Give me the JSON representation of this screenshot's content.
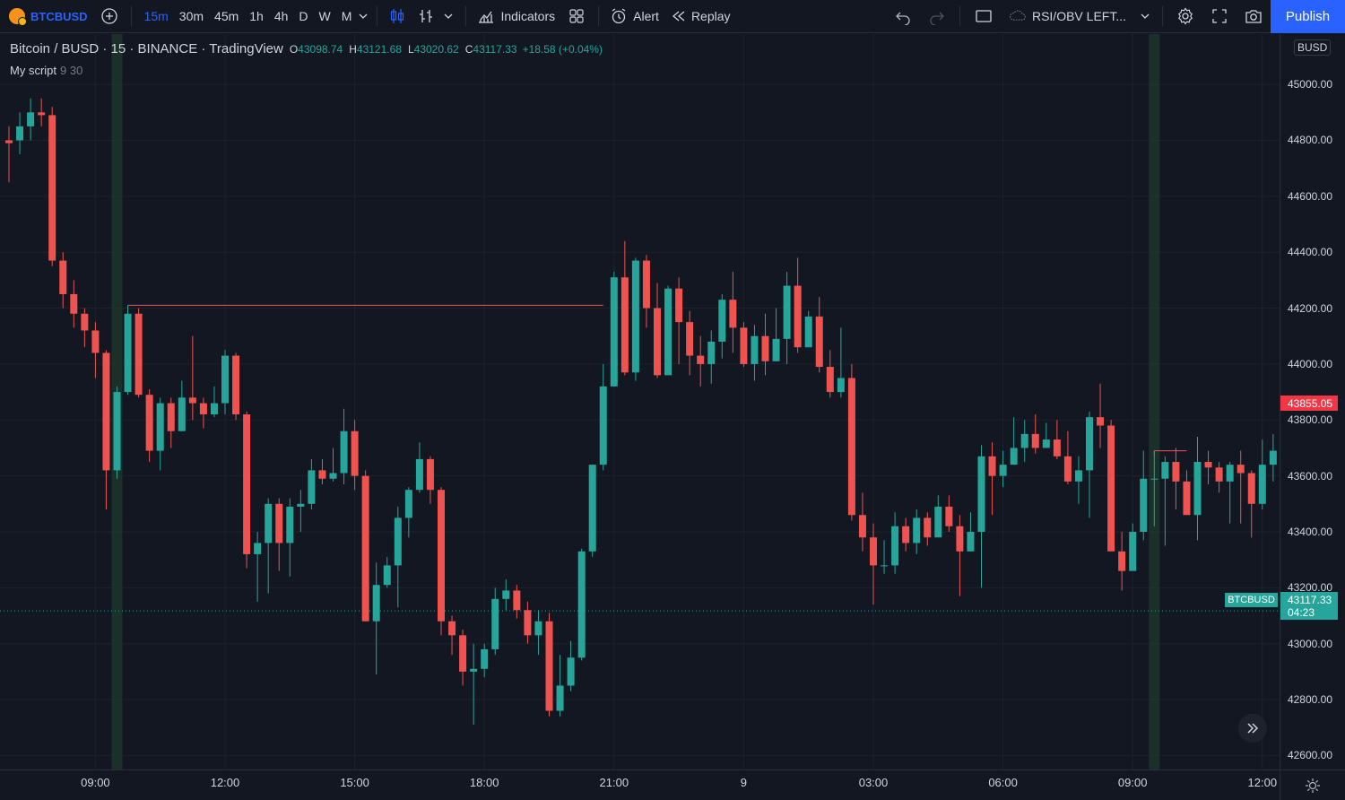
{
  "toolbar": {
    "symbol": "BTCBUSD",
    "intervals": [
      "15m",
      "30m",
      "45m",
      "1h",
      "4h",
      "D",
      "W",
      "M"
    ],
    "active_interval": "15m",
    "indicators_label": "Indicators",
    "alert_label": "Alert",
    "replay_label": "Replay",
    "layout_name": "RSI/OBV LEFT...",
    "publish_label": "Publish"
  },
  "legend": {
    "title": "Bitcoin / BUSD · 15 · BINANCE · TradingView",
    "o_label": "O",
    "o_value": "43098.74",
    "h_label": "H",
    "h_value": "43121.68",
    "l_label": "L",
    "l_value": "43020.62",
    "c_label": "C",
    "c_value": "43117.33",
    "change": "+18.58 (+0.04%)",
    "script_name": "My script",
    "script_params": "9 30"
  },
  "price_scale": {
    "currency": "BUSD",
    "labels": [
      "45000.00",
      "44800.00",
      "44600.00",
      "44400.00",
      "44200.00",
      "44000.00",
      "43800.00",
      "43600.00",
      "43400.00",
      "43200.00",
      "43000.00",
      "42800.00",
      "42600.00"
    ],
    "red_tag": "43855.05",
    "last_price": "43117.33",
    "countdown": "04:23",
    "symbol_tag": "BTCBUSD"
  },
  "time_axis": {
    "labels": [
      "09:00",
      "12:00",
      "15:00",
      "18:00",
      "21:00",
      "9",
      "03:00",
      "06:00",
      "09:00",
      "12:00"
    ]
  },
  "colors": {
    "up": "#26a69a",
    "down": "#ef5350",
    "background": "#131722",
    "accent": "#2962ff",
    "session_highlight": "#1e3a2b"
  },
  "chart_data": {
    "type": "candlestick",
    "symbol": "BTCBUSD",
    "interval": "15",
    "ylim": [
      42550,
      45180
    ],
    "last_price": 43117.33,
    "session_highlights": [
      "09:00",
      "09:00"
    ],
    "horizontal_lines": [
      {
        "value": 44210,
        "color": "#ef5350"
      },
      {
        "value": 43690,
        "color": "#ef5350"
      }
    ],
    "candles": [
      [
        44800,
        44790,
        44850,
        44650
      ],
      [
        44800,
        44850,
        44900,
        44750
      ],
      [
        44850,
        44900,
        44950,
        44800
      ],
      [
        44900,
        44890,
        44950,
        44850
      ],
      [
        44890,
        44370,
        44920,
        44350
      ],
      [
        44370,
        44250,
        44400,
        44200
      ],
      [
        44250,
        44180,
        44300,
        44130
      ],
      [
        44180,
        44120,
        44200,
        44060
      ],
      [
        44120,
        44040,
        44150,
        43950
      ],
      [
        44040,
        43620,
        44050,
        43480
      ],
      [
        43620,
        43900,
        43920,
        43590
      ],
      [
        43900,
        44180,
        44210,
        43890
      ],
      [
        44180,
        43890,
        44200,
        43880
      ],
      [
        43890,
        43690,
        43910,
        43650
      ],
      [
        43690,
        43860,
        43880,
        43620
      ],
      [
        43860,
        43760,
        43880,
        43700
      ],
      [
        43760,
        43880,
        43940,
        43760
      ],
      [
        43880,
        43860,
        44100,
        43800
      ],
      [
        43860,
        43820,
        43880,
        43770
      ],
      [
        43820,
        43860,
        43920,
        43810
      ],
      [
        43860,
        44030,
        44050,
        43820
      ],
      [
        44030,
        43820,
        44040,
        43800
      ],
      [
        43820,
        43320,
        43830,
        43270
      ],
      [
        43320,
        43360,
        43400,
        43150
      ],
      [
        43360,
        43500,
        43520,
        43180
      ],
      [
        43500,
        43360,
        43520,
        43260
      ],
      [
        43360,
        43490,
        43520,
        43240
      ],
      [
        43490,
        43500,
        43550,
        43400
      ],
      [
        43500,
        43620,
        43660,
        43480
      ],
      [
        43620,
        43590,
        43660,
        43570
      ],
      [
        43590,
        43610,
        43700,
        43580
      ],
      [
        43610,
        43760,
        43840,
        43570
      ],
      [
        43760,
        43600,
        43800,
        43550
      ],
      [
        43600,
        43080,
        43620,
        43080
      ],
      [
        43080,
        43210,
        43290,
        42890
      ],
      [
        43210,
        43280,
        43310,
        43200
      ],
      [
        43280,
        43450,
        43490,
        43130
      ],
      [
        43450,
        43550,
        43560,
        43380
      ],
      [
        43550,
        43660,
        43720,
        43540
      ],
      [
        43660,
        43550,
        43670,
        43500
      ],
      [
        43550,
        43080,
        43560,
        43030
      ],
      [
        43080,
        43030,
        43100,
        42960
      ],
      [
        43030,
        42900,
        43050,
        42850
      ],
      [
        42900,
        42910,
        43000,
        42710
      ],
      [
        42910,
        42980,
        43000,
        42880
      ],
      [
        42980,
        43160,
        43200,
        42960
      ],
      [
        43160,
        43190,
        43230,
        43120
      ],
      [
        43190,
        43120,
        43210,
        43090
      ],
      [
        43120,
        43030,
        43150,
        43000
      ],
      [
        43030,
        43080,
        43120,
        42960
      ],
      [
        43080,
        42760,
        43110,
        42740
      ],
      [
        42760,
        42850,
        42960,
        42740
      ],
      [
        42850,
        42950,
        43010,
        42830
      ],
      [
        42950,
        43330,
        43340,
        42940
      ],
      [
        43330,
        43640,
        43640,
        43310
      ],
      [
        43640,
        43920,
        44000,
        43620
      ],
      [
        43920,
        44310,
        44330,
        43920
      ],
      [
        44310,
        43970,
        44440,
        43960
      ],
      [
        43970,
        44370,
        44380,
        43940
      ],
      [
        44370,
        44200,
        44390,
        44130
      ],
      [
        44200,
        43960,
        44290,
        43950
      ],
      [
        43960,
        44270,
        44280,
        44200
      ],
      [
        44270,
        44150,
        44310,
        44000
      ],
      [
        44150,
        44030,
        44190,
        43960
      ],
      [
        44030,
        44000,
        44100,
        43920
      ],
      [
        44000,
        44080,
        44120,
        43930
      ],
      [
        44080,
        44230,
        44250,
        44020
      ],
      [
        44230,
        44130,
        44330,
        44040
      ],
      [
        44130,
        44000,
        44150,
        43990
      ],
      [
        44000,
        44100,
        44140,
        43940
      ],
      [
        44100,
        44010,
        44180,
        43960
      ],
      [
        44010,
        44090,
        44200,
        44010
      ],
      [
        44090,
        44280,
        44330,
        44000
      ],
      [
        44280,
        44060,
        44380,
        44040
      ],
      [
        44060,
        44170,
        44190,
        44060
      ],
      [
        44170,
        43990,
        44240,
        43970
      ],
      [
        43990,
        43900,
        44050,
        43880
      ],
      [
        43900,
        43950,
        44130,
        43880
      ],
      [
        43950,
        43460,
        44000,
        43440
      ],
      [
        43460,
        43380,
        43540,
        43330
      ],
      [
        43380,
        43280,
        43430,
        43140
      ],
      [
        43280,
        43280,
        43370,
        43250
      ],
      [
        43280,
        43420,
        43470,
        43250
      ],
      [
        43420,
        43360,
        43450,
        43330
      ],
      [
        43360,
        43450,
        43480,
        43320
      ],
      [
        43450,
        43380,
        43470,
        43350
      ],
      [
        43380,
        43490,
        43530,
        43390
      ],
      [
        43490,
        43420,
        43530,
        43400
      ],
      [
        43420,
        43330,
        43460,
        43170
      ],
      [
        43330,
        43400,
        43470,
        43330
      ],
      [
        43400,
        43670,
        43710,
        43200
      ],
      [
        43670,
        43600,
        43720,
        43460
      ],
      [
        43600,
        43640,
        43690,
        43560
      ],
      [
        43640,
        43700,
        43810,
        43640
      ],
      [
        43700,
        43750,
        43800,
        43650
      ],
      [
        43750,
        43700,
        43820,
        43680
      ],
      [
        43700,
        43730,
        43790,
        43700
      ],
      [
        43730,
        43670,
        43800,
        43660
      ],
      [
        43670,
        43580,
        43760,
        43570
      ],
      [
        43580,
        43620,
        43670,
        43500
      ],
      [
        43620,
        43810,
        43830,
        43450
      ],
      [
        43810,
        43780,
        43930,
        43700
      ],
      [
        43780,
        43330,
        43800,
        43330
      ],
      [
        43330,
        43260,
        43400,
        43190
      ],
      [
        43260,
        43400,
        43430,
        43350
      ],
      [
        43400,
        43590,
        43690,
        43370
      ],
      [
        43590,
        43590,
        43690,
        43420
      ],
      [
        43590,
        43650,
        43670,
        43350
      ],
      [
        43650,
        43580,
        43700,
        43480
      ],
      [
        43580,
        43460,
        43620,
        43470
      ],
      [
        43460,
        43650,
        43740,
        43370
      ],
      [
        43650,
        43630,
        43690,
        43570
      ],
      [
        43630,
        43580,
        43650,
        43540
      ],
      [
        43580,
        43640,
        43650,
        43430
      ],
      [
        43640,
        43610,
        43690,
        43430
      ],
      [
        43610,
        43500,
        43620,
        43380
      ],
      [
        43500,
        43640,
        43730,
        43480
      ],
      [
        43640,
        43690,
        43750,
        43580
      ],
      [
        43690,
        43780,
        43830,
        43690
      ],
      [
        43780,
        43840,
        43900,
        43750
      ],
      [
        43840,
        43860,
        43880,
        43820
      ]
    ]
  }
}
